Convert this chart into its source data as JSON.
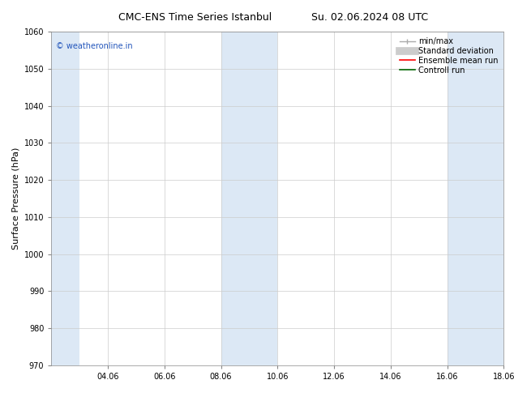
{
  "title_left": "CMC-ENS Time Series Istanbul",
  "title_right": "Su. 02.06.2024 08 UTC",
  "ylabel": "Surface Pressure (hPa)",
  "ylim": [
    970,
    1060
  ],
  "yticks": [
    970,
    980,
    990,
    1000,
    1010,
    1020,
    1030,
    1040,
    1050,
    1060
  ],
  "xlim": [
    0,
    16
  ],
  "xtick_labels": [
    "04.06",
    "06.06",
    "08.06",
    "10.06",
    "12.06",
    "14.06",
    "16.06",
    "18.06"
  ],
  "xtick_positions": [
    2,
    4,
    6,
    8,
    10,
    12,
    14,
    16
  ],
  "shaded_bands": [
    {
      "x_start": 0,
      "x_end": 1.0,
      "color": "#dce8f5"
    },
    {
      "x_start": 6.0,
      "x_end": 8.0,
      "color": "#dce8f5"
    },
    {
      "x_start": 14.0,
      "x_end": 16.0,
      "color": "#dce8f5"
    }
  ],
  "watermark": "© weatheronline.in",
  "watermark_color": "#2255bb",
  "background_color": "#ffffff",
  "minmax_color": "#aaaaaa",
  "stddev_color": "#cccccc",
  "ensemble_color": "#ff0000",
  "control_color": "#006600",
  "grid_color": "#cccccc",
  "spine_color": "#888888",
  "tick_label_fontsize": 7,
  "ylabel_fontsize": 8,
  "title_fontsize": 9,
  "watermark_fontsize": 7,
  "legend_fontsize": 7
}
